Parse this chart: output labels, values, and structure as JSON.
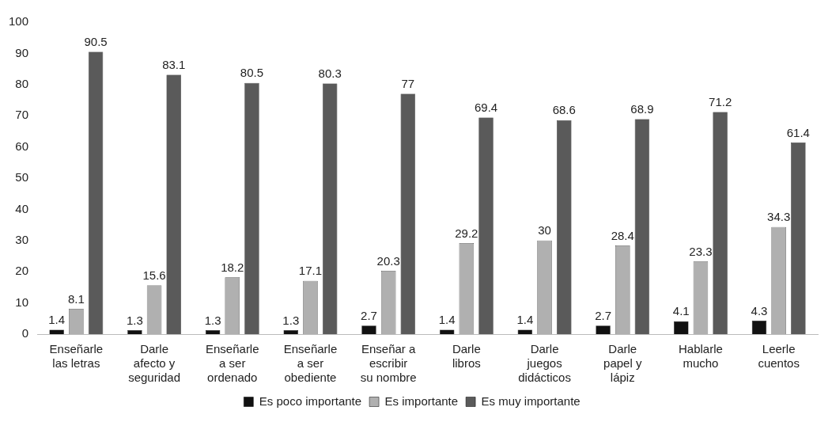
{
  "chart_data": {
    "type": "bar",
    "categories": [
      "Enseñarle las letras",
      "Darle afecto y seguridad",
      "Enseñarle a ser ordenado",
      "Enseñarle a ser obediente",
      "Enseñar a escribir su nombre",
      "Darle libros",
      "Darle juegos didácticos",
      "Darle papel y lápiz",
      "Hablarle mucho",
      "Leerle cuentos"
    ],
    "series": [
      {
        "name": "Es poco importante",
        "color": "#111111",
        "values": [
          1.4,
          1.3,
          1.3,
          1.3,
          2.7,
          1.4,
          1.4,
          2.7,
          4.1,
          4.3
        ]
      },
      {
        "name": "Es importante",
        "color": "#b0b0b0",
        "values": [
          8.1,
          15.6,
          18.2,
          17.1,
          20.3,
          29.2,
          30,
          28.4,
          23.3,
          34.3
        ]
      },
      {
        "name": "Es muy importante",
        "color": "#5a5a5a",
        "values": [
          90.5,
          83.1,
          80.5,
          80.3,
          77,
          69.4,
          68.6,
          68.9,
          71.2,
          61.4
        ]
      }
    ],
    "ylim": [
      0,
      100
    ],
    "yticks": [
      0,
      10,
      20,
      30,
      40,
      50,
      60,
      70,
      80,
      90,
      100
    ],
    "grid": false,
    "legend": "bottom",
    "data_labels": true
  }
}
